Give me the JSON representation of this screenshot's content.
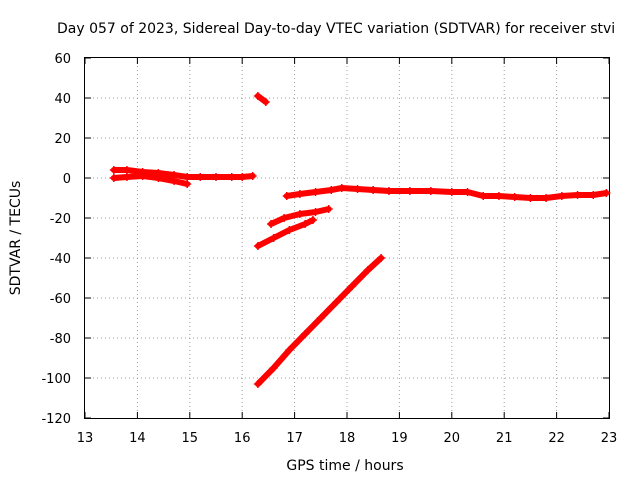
{
  "chart_data": {
    "type": "scatter",
    "title": "Day 057 of 2023, Sidereal Day-to-day VTEC variation (SDTVAR) for receiver stvi",
    "xlabel": "GPS time / hours",
    "ylabel": "SDTVAR / TECUs",
    "xlim": [
      13,
      23
    ],
    "ylim": [
      -120,
      60
    ],
    "xticks": [
      13,
      14,
      15,
      16,
      17,
      18,
      19,
      20,
      21,
      22,
      23
    ],
    "yticks": [
      -120,
      -100,
      -80,
      -60,
      -40,
      -20,
      0,
      20,
      40,
      60
    ],
    "grid": true,
    "color": "#ff0000",
    "series": [
      {
        "name": "arc-1",
        "x": [
          13.55,
          13.8,
          14.1,
          14.4,
          14.7,
          14.95,
          15.2,
          15.5,
          15.8,
          16.0,
          16.2
        ],
        "y": [
          4,
          4,
          3,
          2.5,
          1.5,
          0.5,
          0.5,
          0.5,
          0.5,
          0.5,
          1
        ]
      },
      {
        "name": "arc-2",
        "x": [
          13.55,
          13.8,
          14.1,
          14.4,
          14.7,
          14.95
        ],
        "y": [
          0,
          0.5,
          1,
          0,
          -1.5,
          -3
        ]
      },
      {
        "name": "arc-3",
        "x": [
          16.3,
          16.45
        ],
        "y": [
          41,
          38
        ]
      },
      {
        "name": "arc-4",
        "x": [
          16.85,
          17.1,
          17.4,
          17.7,
          17.9,
          18.2,
          18.5,
          18.8,
          19.2,
          19.6,
          20.0,
          20.3,
          20.6,
          20.9,
          21.2,
          21.5,
          21.8,
          22.1,
          22.4,
          22.7,
          22.95
        ],
        "y": [
          -9,
          -8,
          -7,
          -6,
          -5,
          -5.5,
          -6,
          -6.5,
          -6.5,
          -6.5,
          -7,
          -7,
          -9,
          -9,
          -9.5,
          -10,
          -10,
          -9,
          -8.5,
          -8.5,
          -7.5
        ]
      },
      {
        "name": "arc-5",
        "x": [
          16.55,
          16.8,
          17.1,
          17.4,
          17.65
        ],
        "y": [
          -23,
          -20,
          -18,
          -17,
          -15.5
        ]
      },
      {
        "name": "arc-6",
        "x": [
          16.3,
          16.6,
          16.9,
          17.2,
          17.35
        ],
        "y": [
          -34,
          -30,
          -26,
          -23,
          -21
        ]
      },
      {
        "name": "arc-7",
        "x": [
          16.3,
          16.6,
          16.9,
          17.2,
          17.5,
          17.8,
          18.1,
          18.4,
          18.65
        ],
        "y": [
          -103,
          -95,
          -86,
          -78,
          -70,
          -62,
          -54,
          -46,
          -40
        ]
      }
    ]
  }
}
